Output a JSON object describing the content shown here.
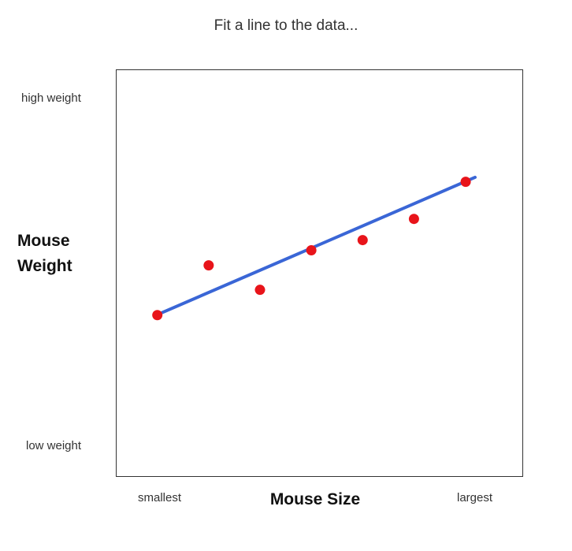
{
  "chart_data": {
    "type": "scatter",
    "title": "Fit a line to the data...",
    "xlabel": "Mouse Size",
    "ylabel_lines": [
      "Mouse",
      "Weight"
    ],
    "x_ticks": [
      "smallest",
      "largest"
    ],
    "y_ticks": [
      "high weight",
      "low weight"
    ],
    "xlim": [
      0,
      10
    ],
    "ylim": [
      0,
      10
    ],
    "grid": false,
    "legend": "none",
    "colors": {
      "points": "#e8141a",
      "line": "#3a66d6",
      "frame": "#333333"
    },
    "series": [
      {
        "type": "scatter",
        "x": [
          1.0,
          2.26,
          3.52,
          4.78,
          6.04,
          7.3,
          8.57
        ],
        "y": [
          3.99,
          5.21,
          4.61,
          5.58,
          5.83,
          6.35,
          7.26
        ]
      },
      {
        "type": "line",
        "x": [
          1.0,
          8.8
        ],
        "y": [
          4.0,
          7.37
        ]
      }
    ]
  }
}
